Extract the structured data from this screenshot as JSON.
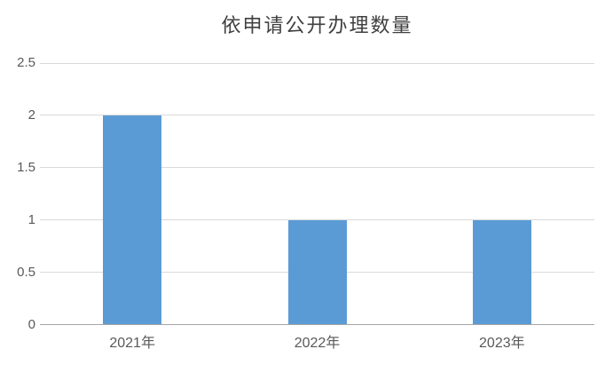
{
  "title": "依申请公开办理数量",
  "colors": {
    "bar": "#5B9BD5",
    "gridline": "#D9D9D9",
    "axis_line": "#A6A6A6",
    "tick_label": "#595959",
    "title": "#404040",
    "background": "#FFFFFF"
  },
  "chart_data": {
    "type": "bar",
    "title": "依申请公开办理数量",
    "categories": [
      "2021年",
      "2022年",
      "2023年"
    ],
    "values": [
      2,
      1,
      1
    ],
    "xlabel": "",
    "ylabel": "",
    "ylim": [
      0,
      2.5
    ],
    "ytick_step": 0.5,
    "yticks": [
      0,
      0.5,
      1,
      1.5,
      2,
      2.5
    ],
    "ytick_labels": [
      "0",
      "0.5",
      "1",
      "1.5",
      "2",
      "2.5"
    ],
    "grid": true,
    "legend": false
  }
}
